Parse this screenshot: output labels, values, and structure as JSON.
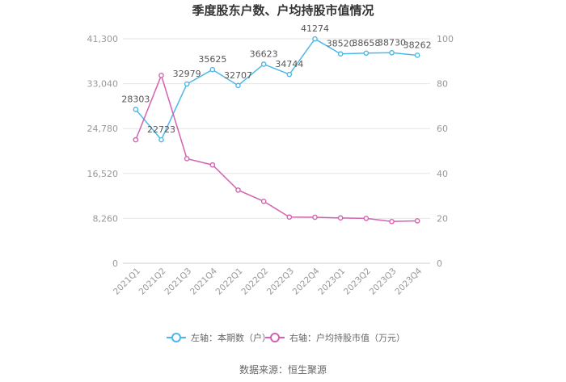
{
  "chart_data": {
    "type": "line",
    "title": "季度股东户数、户均持股市值情况",
    "categories": [
      "2021Q1",
      "2021Q2",
      "2021Q3",
      "2021Q4",
      "2022Q1",
      "2022Q2",
      "2022Q3",
      "2022Q4",
      "2023Q1",
      "2023Q2",
      "2023Q3",
      "2023Q4"
    ],
    "left_axis": {
      "ticks": [
        "0",
        "8,260",
        "16,520",
        "24,780",
        "33,040",
        "41,300"
      ],
      "min": 0,
      "max": 41300
    },
    "right_axis": {
      "ticks": [
        "0",
        "20",
        "40",
        "60",
        "80",
        "100"
      ],
      "min": 0,
      "max": 100
    },
    "series": [
      {
        "name": "左轴：本期数（户）",
        "axis": "left",
        "color": "#4db8e8",
        "values": [
          28303,
          22723,
          32979,
          35625,
          32707,
          36623,
          34744,
          41274,
          38520,
          38658,
          38730,
          38262
        ],
        "labels": [
          "28303",
          "22723",
          "32979",
          "35625",
          "32707",
          "36623",
          "34744",
          "41274",
          "38520",
          "38658",
          "38730",
          "38262"
        ]
      },
      {
        "name": "右轴：户均持股市值（万元）",
        "axis": "right",
        "color": "#d462b0",
        "values": [
          55.0,
          83.7,
          46.6,
          43.8,
          32.6,
          27.6,
          20.6,
          20.5,
          20.2,
          20.0,
          18.6,
          18.9
        ]
      }
    ],
    "grid": true,
    "legend_position": "bottom"
  },
  "source": "数据来源：恒生聚源"
}
